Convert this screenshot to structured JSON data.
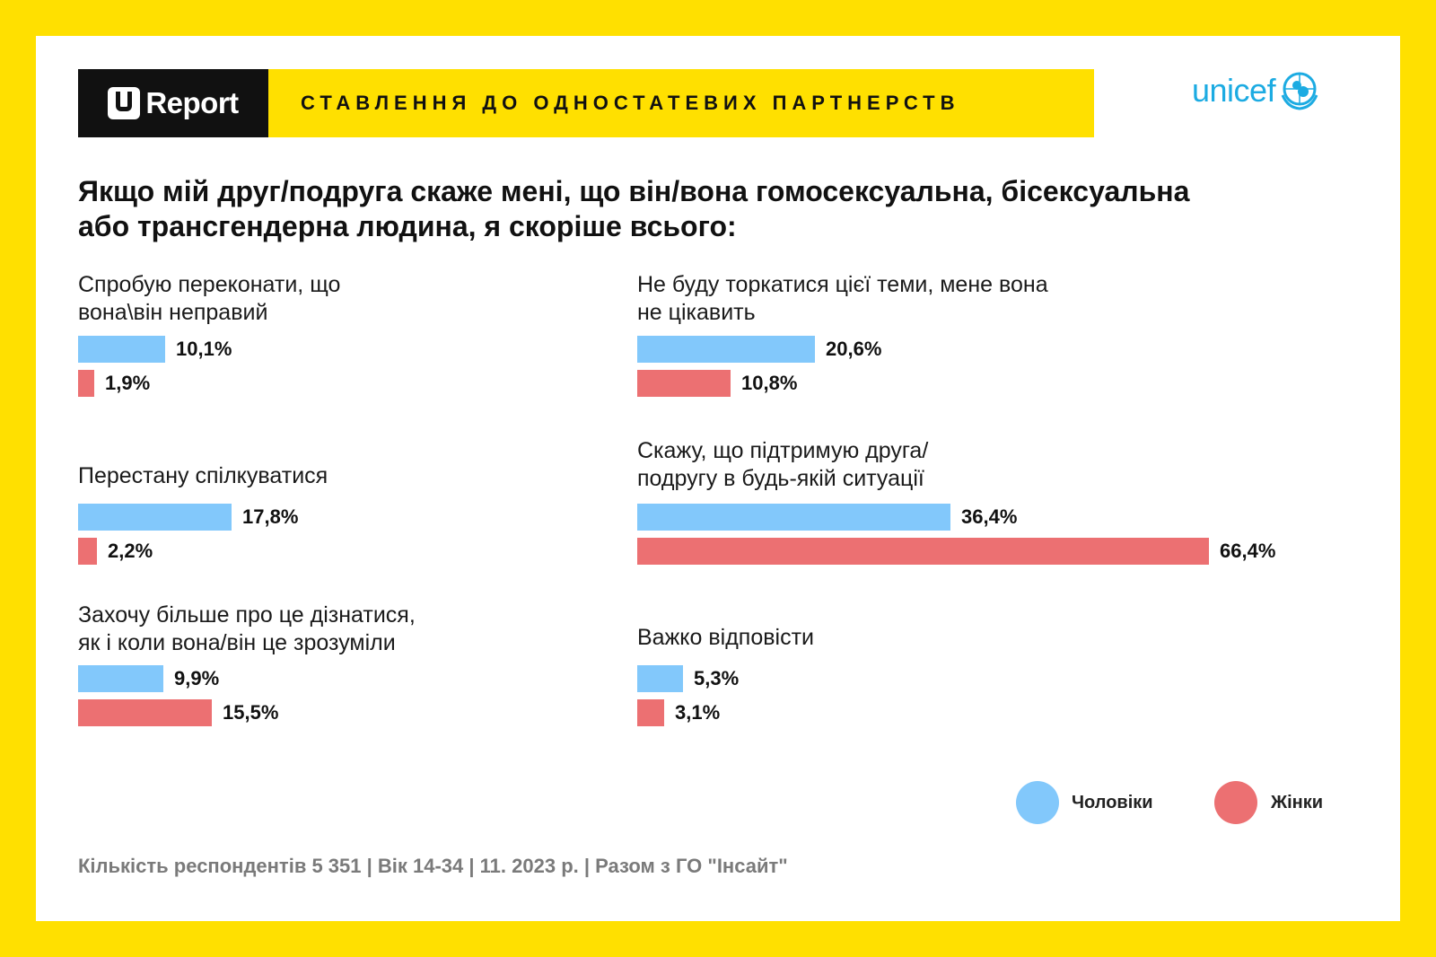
{
  "header": {
    "logo_text": "Report",
    "title": "СТАВЛЕННЯ ДО ОДНОСТАТЕВИХ ПАРТНЕРСТВ",
    "partner_logo": "unicef"
  },
  "question": "Якщо мій друг/подруга скаже мені, що він/вона гомосексуальна, бісексуальна або трансгендерна людина, я скоріше всього:",
  "colors": {
    "men": "#82C8FB",
    "women": "#EC7072",
    "accent": "#FFE000",
    "unicef": "#1CABE2"
  },
  "chart_data": {
    "type": "bar",
    "orientation": "horizontal",
    "series": [
      {
        "name": "Чоловіки",
        "color": "#82C8FB"
      },
      {
        "name": "Жінки",
        "color": "#EC7072"
      }
    ],
    "items": [
      {
        "label_lines": [
          "Спробую переконати, що",
          "вона\\він неправий"
        ],
        "men": 10.1,
        "women": 1.9,
        "men_label": "10,1%",
        "women_label": "1,9%"
      },
      {
        "label_lines": [
          "Перестану спілкуватися"
        ],
        "men": 17.8,
        "women": 2.2,
        "men_label": "17,8%",
        "women_label": "2,2%"
      },
      {
        "label_lines": [
          "Захочу більше про це дізнатися,",
          "як і коли вона/він це зрозуміли"
        ],
        "men": 9.9,
        "women": 15.5,
        "men_label": "9,9%",
        "women_label": "15,5%"
      },
      {
        "label_lines": [
          "Не буду торкатися цієї теми, мене вона",
          "не цікавить"
        ],
        "men": 20.6,
        "women": 10.8,
        "men_label": "20,6%",
        "women_label": "10,8%"
      },
      {
        "label_lines": [
          "Скажу, що підтримую друга/",
          "подругу в будь-якій ситуації"
        ],
        "men": 36.4,
        "women": 66.4,
        "men_label": "36,4%",
        "women_label": "66,4%"
      },
      {
        "label_lines": [
          "Важко відповісти"
        ],
        "men": 5.3,
        "women": 3.1,
        "men_label": "5,3%",
        "women_label": "3,1%"
      }
    ]
  },
  "legend": {
    "men": "Чоловіки",
    "women": "Жінки"
  },
  "footer": "Кількість респондентів 5 351 |  Вік 14-34 | 11. 2023 р. | Разом з ГО \"Інсайт\""
}
